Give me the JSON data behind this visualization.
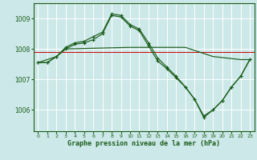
{
  "xlabel": "Graphe pression niveau de la mer (hPa)",
  "bg_color": "#cce8e8",
  "grid_color": "#b8d8d8",
  "line_color": "#1a5c1a",
  "ref_line_color": "#cc0000",
  "ref_value": 1007.9,
  "ylim": [
    1005.3,
    1009.5
  ],
  "xlim": [
    -0.5,
    23.5
  ],
  "yticks": [
    1006,
    1007,
    1008,
    1009
  ],
  "xticks": [
    0,
    1,
    2,
    3,
    4,
    5,
    6,
    7,
    8,
    9,
    10,
    11,
    12,
    13,
    14,
    15,
    16,
    17,
    18,
    19,
    20,
    21,
    22,
    23
  ],
  "series1_x": [
    0,
    1,
    2,
    3,
    4,
    5,
    6,
    7,
    8,
    9,
    10,
    11,
    12,
    13,
    14,
    15,
    16,
    17,
    18,
    19,
    20,
    21,
    22,
    23
  ],
  "series1": [
    1007.55,
    1007.55,
    1007.75,
    1008.0,
    1008.15,
    1008.2,
    1008.3,
    1008.5,
    1009.1,
    1009.05,
    1008.75,
    1008.6,
    1008.1,
    1007.6,
    1007.35,
    1007.05,
    1006.75,
    1006.35,
    1005.8,
    1006.0,
    1006.3,
    1006.75,
    1007.1,
    1007.65
  ],
  "series2_x": [
    0,
    1,
    2,
    3,
    4,
    5,
    6,
    7,
    8,
    9,
    10,
    11,
    12,
    13,
    14,
    15,
    16,
    17,
    18,
    19,
    20,
    21,
    22,
    23
  ],
  "series2": [
    1007.55,
    1007.55,
    1007.75,
    1008.05,
    1008.2,
    1008.25,
    1008.4,
    1008.55,
    1009.15,
    1009.1,
    1008.8,
    1008.65,
    1008.2,
    1007.7,
    1007.4,
    1007.1,
    1006.75,
    1006.35,
    1005.75,
    1006.0,
    1006.3,
    1006.75,
    1007.1,
    1007.65
  ],
  "series3_x": [
    0,
    2,
    3,
    10,
    16,
    19,
    22,
    23
  ],
  "series3": [
    1007.55,
    1007.75,
    1008.0,
    1008.05,
    1008.05,
    1007.75,
    1007.65,
    1007.65
  ]
}
